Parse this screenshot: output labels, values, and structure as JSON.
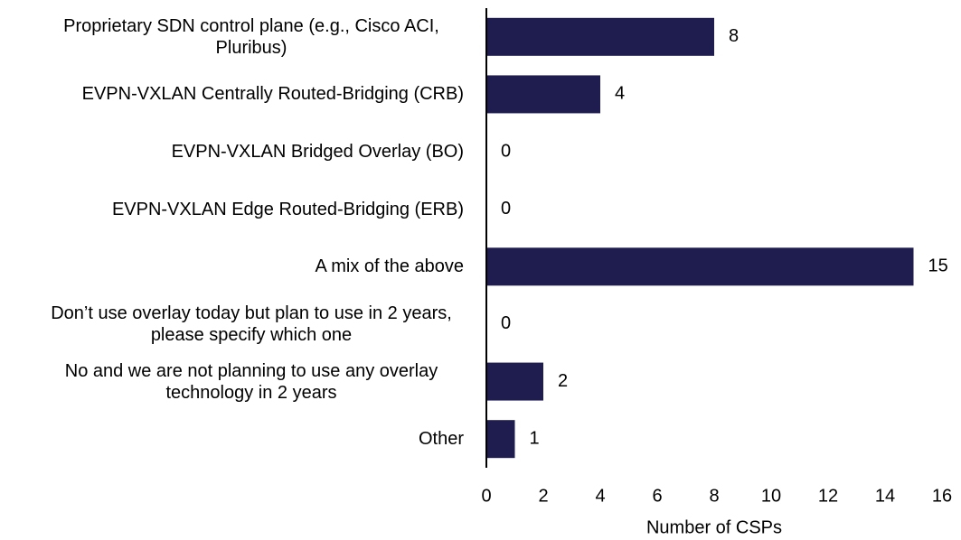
{
  "chart_data": {
    "type": "barh",
    "categories": [
      "Proprietary SDN control plane (e.g., Cisco ACI, Pluribus)",
      "EVPN-VXLAN Centrally Routed-Bridging (CRB)",
      "EVPN-VXLAN Bridged Overlay (BO)",
      "EVPN-VXLAN Edge Routed-Bridging (ERB)",
      "A mix of the above",
      "Don’t use overlay today but plan to use in 2 years, please specify which one",
      "No and we are not planning to use any overlay technology in 2 years",
      "Other"
    ],
    "values": [
      8,
      4,
      0,
      0,
      15,
      0,
      2,
      1
    ],
    "color": "#1f1d4f",
    "xlabel": "Number of CSPs",
    "xlim": [
      0,
      16
    ],
    "xticks": [
      0,
      2,
      4,
      6,
      8,
      10,
      12,
      14,
      16
    ],
    "grid": false
  }
}
